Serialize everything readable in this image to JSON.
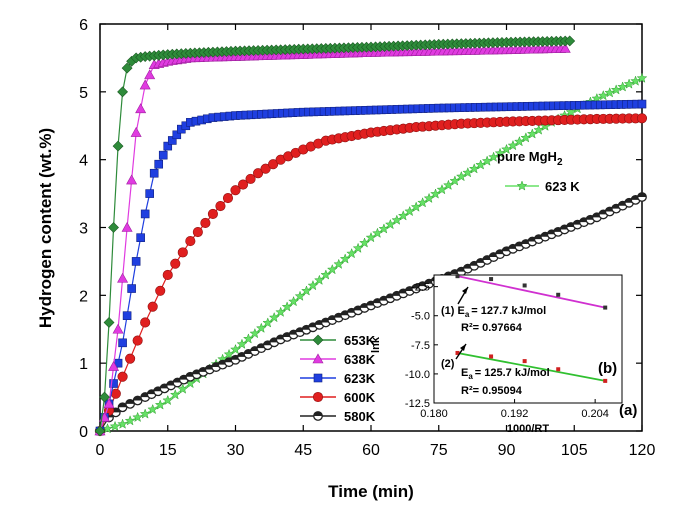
{
  "colors": {
    "653K": "#2e8b3a",
    "638K": "#e03be0",
    "623K": "#1f3fe0",
    "600K": "#e01f1f",
    "580K": "#222222",
    "pure": "#66e066",
    "inset1": "#d030d0",
    "inset2": "#30c030"
  },
  "chart_data": {
    "type": "scatter",
    "xlabel": "Time (min)",
    "ylabel": "Hydrogen content (wt.%)",
    "xlim": [
      0,
      120
    ],
    "ylim": [
      0,
      6
    ],
    "xticks": [
      0,
      15,
      30,
      45,
      60,
      75,
      90,
      105,
      120
    ],
    "yticks": [
      0,
      1,
      2,
      3,
      4,
      5,
      6
    ],
    "panel_label": "(a)",
    "series": [
      {
        "name": "653K",
        "marker": "diamond",
        "color_key": "653K",
        "x": [
          0,
          1,
          2,
          3,
          4,
          5,
          6,
          7,
          8,
          10,
          15,
          20,
          30,
          45,
          60,
          75,
          90,
          104
        ],
        "y": [
          0,
          0.5,
          1.6,
          3.0,
          4.2,
          5.0,
          5.35,
          5.45,
          5.5,
          5.52,
          5.55,
          5.57,
          5.6,
          5.63,
          5.66,
          5.7,
          5.73,
          5.75
        ]
      },
      {
        "name": "638K",
        "marker": "triangle",
        "color_key": "638K",
        "x": [
          0,
          2,
          4,
          6,
          8,
          10,
          12,
          15,
          20,
          30,
          45,
          60,
          75,
          90,
          103
        ],
        "y": [
          0,
          0.4,
          1.5,
          3.0,
          4.4,
          5.1,
          5.4,
          5.45,
          5.5,
          5.52,
          5.55,
          5.58,
          5.6,
          5.62,
          5.64
        ]
      },
      {
        "name": "623K",
        "marker": "square",
        "color_key": "623K",
        "x": [
          0,
          2,
          5,
          8,
          10,
          12,
          15,
          18,
          20,
          25,
          30,
          45,
          60,
          75,
          90,
          105,
          120
        ],
        "y": [
          0,
          0.4,
          1.3,
          2.5,
          3.2,
          3.8,
          4.2,
          4.45,
          4.55,
          4.62,
          4.65,
          4.7,
          4.73,
          4.76,
          4.78,
          4.8,
          4.82
        ]
      },
      {
        "name": "600K",
        "marker": "circle",
        "color_key": "600K",
        "x": [
          0,
          2,
          5,
          10,
          15,
          20,
          25,
          30,
          35,
          40,
          45,
          50,
          60,
          70,
          80,
          90,
          100,
          110,
          120
        ],
        "y": [
          0,
          0.3,
          0.8,
          1.6,
          2.3,
          2.8,
          3.2,
          3.55,
          3.8,
          4.0,
          4.15,
          4.28,
          4.4,
          4.48,
          4.53,
          4.56,
          4.58,
          4.6,
          4.61
        ]
      },
      {
        "name": "580K",
        "marker": "half-circle",
        "color_key": "580K",
        "x": [
          0,
          2,
          5,
          10,
          20,
          30,
          40,
          50,
          60,
          70,
          80,
          90,
          100,
          110,
          120
        ],
        "y": [
          0,
          0.2,
          0.35,
          0.5,
          0.8,
          1.05,
          1.35,
          1.6,
          1.85,
          2.1,
          2.35,
          2.65,
          2.9,
          3.15,
          3.45
        ]
      }
    ],
    "inset_series": {
      "title": "pure MgH",
      "title_sub": "2",
      "label": "623 K",
      "marker": "star",
      "color_key": "pure",
      "x": [
        0,
        5,
        10,
        15,
        20,
        30,
        40,
        50,
        60,
        70,
        80,
        90,
        100,
        110,
        120
      ],
      "y": [
        0,
        0.1,
        0.25,
        0.45,
        0.7,
        1.2,
        1.75,
        2.3,
        2.85,
        3.3,
        3.75,
        4.15,
        4.55,
        4.9,
        5.2
      ]
    },
    "inset": {
      "xlabel": "1000/RT",
      "ylabel": "lnk",
      "panel_label": "(b)",
      "xlim": [
        0.18,
        0.208
      ],
      "ylim": [
        -12.5,
        -1.5
      ],
      "xticks": [
        0.18,
        0.192,
        0.204
      ],
      "xtick_labels": [
        "0.180",
        "0.192",
        "0.204"
      ],
      "yticks": [
        -2.5,
        -5.0,
        -7.5,
        -10.0,
        -12.5
      ],
      "ytick_labels": [
        "-2.5",
        "-5.0",
        "-7.5",
        "-10.0",
        "-12.5"
      ],
      "series": [
        {
          "name": "(1)",
          "color_key": "inset1",
          "x": [
            0.1835,
            0.1885,
            0.1935,
            0.1985,
            0.2055
          ],
          "y": [
            -1.6,
            -1.85,
            -2.4,
            -3.2,
            -4.3
          ]
        },
        {
          "name": "(2)",
          "color_key": "inset2",
          "x": [
            0.1835,
            0.1885,
            0.1935,
            0.1985,
            0.2055
          ],
          "y": [
            -8.2,
            -8.5,
            -8.9,
            -9.6,
            -10.6
          ]
        }
      ],
      "annotations": {
        "line1_prefix": "(1) E",
        "line1_sub": "a",
        "line1_value": "= 127.7 kJ/mol",
        "r2_1": "R²= 0.97664",
        "line2_prefix": "(2)",
        "ea2_prefix": "E",
        "ea2_sub": "a",
        "ea2_value": "= 125.7 kJ/mol",
        "r2_2": "R²= 0.95094"
      }
    }
  }
}
